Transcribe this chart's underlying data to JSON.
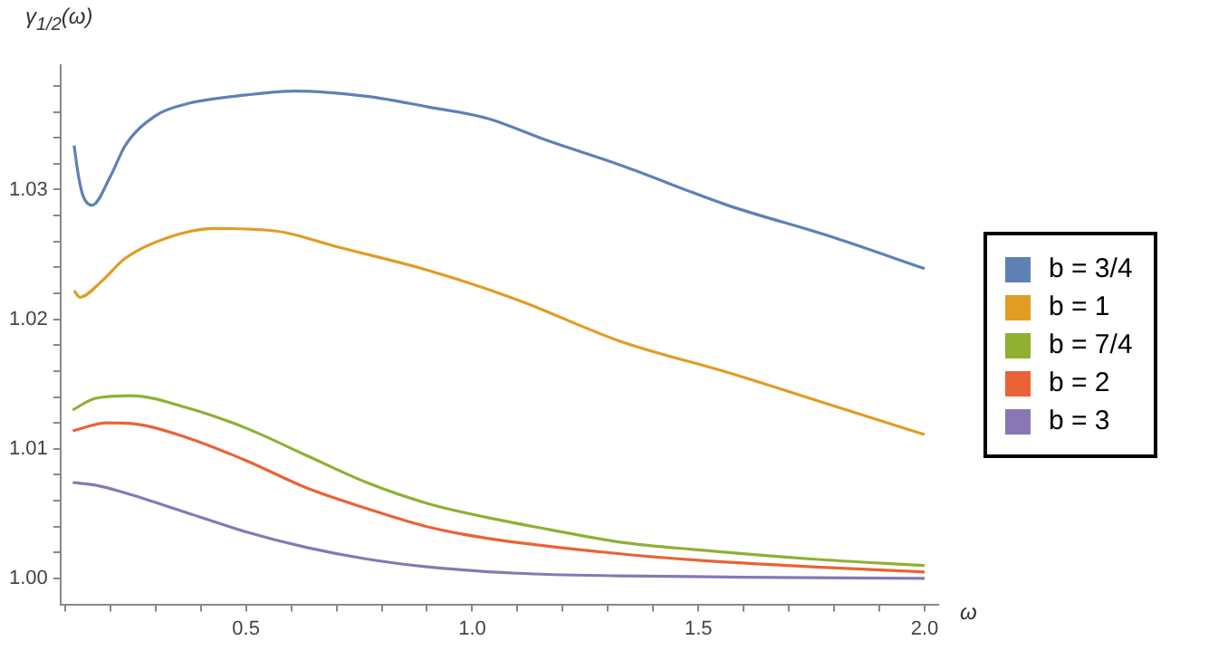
{
  "chart_data": {
    "type": "line",
    "ylabel": "γ$_{1/2}$(ω)",
    "xlabel": "ω",
    "legend": "right",
    "marker": "none",
    "line_style": "solid",
    "xlim": [
      0.09,
      2.03
    ],
    "ylim": [
      0.998,
      1.0396
    ],
    "xticks": [
      {
        "value": 0.1,
        "label": null
      },
      {
        "value": 0.2,
        "label": null
      },
      {
        "value": 0.3,
        "label": null
      },
      {
        "value": 0.4,
        "label": null
      },
      0.5,
      {
        "value": 0.6,
        "label": null
      },
      {
        "value": 0.7,
        "label": null
      },
      {
        "value": 0.8,
        "label": null
      },
      {
        "value": 0.9,
        "label": null
      },
      {
        "value": 1,
        "label": "1.0"
      },
      {
        "value": 1.1,
        "label": null
      },
      {
        "value": 1.2,
        "label": null
      },
      {
        "value": 1.3,
        "label": null
      },
      {
        "value": 1.4,
        "label": null
      },
      1.5,
      {
        "value": 1.6,
        "label": null
      },
      {
        "value": 1.7,
        "label": null
      },
      {
        "value": 1.8,
        "label": null
      },
      {
        "value": 1.9,
        "label": null
      },
      {
        "value": 2,
        "label": "2.0"
      }
    ],
    "yticks": [
      {
        "value": 1,
        "label": "1.00"
      },
      {
        "value": 1.002,
        "label": null
      },
      {
        "value": 1.004,
        "label": null
      },
      {
        "value": 1.006,
        "label": null
      },
      {
        "value": 1.008,
        "label": null
      },
      1.01,
      {
        "value": 1.012,
        "label": null
      },
      {
        "value": 1.014,
        "label": null
      },
      {
        "value": 1.016,
        "label": null
      },
      {
        "value": 1.018,
        "label": null
      },
      {
        "value": 1.02,
        "label": "1.02"
      },
      {
        "value": 1.022,
        "label": null
      },
      {
        "value": 1.024,
        "label": null
      },
      {
        "value": 1.026,
        "label": null
      },
      {
        "value": 1.028,
        "label": null
      },
      1.03,
      {
        "value": 1.032,
        "label": null
      },
      {
        "value": 1.034,
        "label": null
      },
      {
        "value": 1.036,
        "label": null
      },
      {
        "value": 1.038,
        "label": null
      }
    ],
    "series": [
      {
        "name": "b = 3/4",
        "color": "#5e81b5",
        "x": [
          0.12,
          0.13,
          0.14,
          0.16,
          0.2,
          0.233,
          0.3,
          0.367,
          0.5,
          0.607,
          0.767,
          0.9,
          1.033,
          1.165,
          1.327,
          1.564,
          1.8,
          2.0
        ],
        "values": [
          1.0334,
          1.031,
          1.0295,
          1.0288,
          1.031,
          1.0334,
          1.0357,
          1.0366,
          1.0373,
          1.0376,
          1.0372,
          1.0364,
          1.0355,
          1.0338,
          1.0319,
          1.0288,
          1.0263,
          1.0239
        ]
      },
      {
        "name": "b = 1",
        "color": "#e19c24",
        "x": [
          0.12,
          0.133,
          0.18,
          0.233,
          0.327,
          0.433,
          0.567,
          0.7,
          0.9,
          1.1,
          1.327,
          1.564,
          1.8,
          2.0
        ],
        "values": [
          1.0222,
          1.0217,
          1.0229,
          1.0247,
          1.0263,
          1.027,
          1.0268,
          1.0256,
          1.0238,
          1.0215,
          1.0183,
          1.0159,
          1.0133,
          1.0111
        ]
      },
      {
        "name": "b = 7/4",
        "color": "#8fb032",
        "x": [
          0.117,
          0.167,
          0.247,
          0.367,
          0.5,
          0.633,
          0.767,
          0.9,
          1.033,
          1.167,
          1.327,
          1.5,
          1.75,
          2.0
        ],
        "values": [
          1.013,
          1.0139,
          1.0141,
          1.0132,
          1.0116,
          1.0095,
          1.0074,
          1.0058,
          1.0047,
          1.0038,
          1.0028,
          1.0022,
          1.0015,
          1.001
        ]
      },
      {
        "name": "b = 2",
        "color": "#eb6235",
        "x": [
          0.117,
          0.193,
          0.26,
          0.367,
          0.5,
          0.633,
          0.767,
          0.9,
          1.033,
          1.327,
          1.5,
          1.75,
          2.0
        ],
        "values": [
          1.0114,
          1.012,
          1.0119,
          1.0109,
          1.0091,
          1.007,
          1.0054,
          1.004,
          1.0031,
          1.0019,
          1.0014,
          1.0009,
          1.0005
        ]
      },
      {
        "name": "b = 3",
        "color": "#8778b3",
        "x": [
          0.117,
          0.167,
          0.233,
          0.367,
          0.5,
          0.633,
          0.767,
          0.9,
          1.1,
          1.327,
          1.6,
          2.0
        ],
        "values": [
          1.0074,
          1.0072,
          1.0066,
          1.0051,
          1.0036,
          1.0024,
          1.0015,
          1.0009,
          1.0004,
          1.0002,
          1.0001,
          1.0
        ]
      }
    ]
  }
}
